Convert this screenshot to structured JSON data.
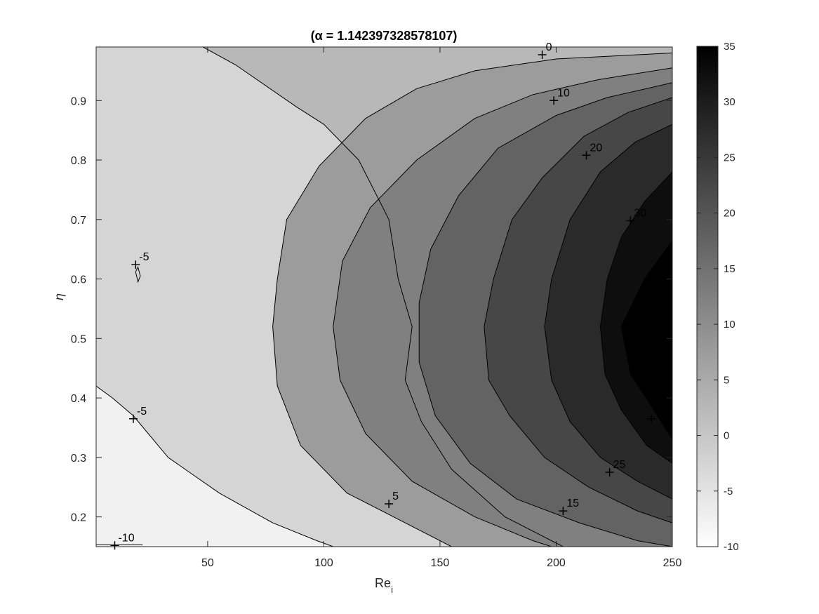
{
  "chart_data": {
    "type": "contour",
    "title": "(α = 1.142397328578107)",
    "xlabel": "Re",
    "xlabel_sub": "i",
    "ylabel": "η",
    "xlim": [
      2,
      250
    ],
    "ylim": [
      0.15,
      0.99
    ],
    "xticks": [
      50,
      100,
      150,
      200,
      250
    ],
    "yticks": [
      0.2,
      0.3,
      0.4,
      0.5,
      0.6,
      0.7,
      0.8,
      0.9
    ],
    "colormap": "gray (reversed)",
    "colorbar": {
      "range": [
        -10,
        35
      ],
      "ticks": [
        -10,
        -5,
        0,
        5,
        10,
        15,
        20,
        25,
        30,
        35
      ]
    },
    "levels": [
      -10,
      -5,
      0,
      5,
      10,
      15,
      20,
      25,
      30,
      35
    ],
    "contour_lines": [
      {
        "level": 0,
        "points": [
          [
            48,
            0.99
          ],
          [
            62,
            0.96
          ],
          [
            88,
            0.89
          ],
          [
            100,
            0.86
          ],
          [
            115,
            0.8
          ],
          [
            128,
            0.7
          ],
          [
            132,
            0.6
          ],
          [
            138,
            0.52
          ],
          [
            135,
            0.43
          ],
          [
            142,
            0.36
          ],
          [
            155,
            0.28
          ],
          [
            178,
            0.2
          ],
          [
            203,
            0.15
          ]
        ]
      },
      {
        "level": 5,
        "points": [
          [
            250,
            0.98
          ],
          [
            200,
            0.97
          ],
          [
            165,
            0.95
          ],
          [
            140,
            0.92
          ],
          [
            118,
            0.87
          ],
          [
            98,
            0.79
          ],
          [
            84,
            0.7
          ],
          [
            80,
            0.6
          ],
          [
            78,
            0.52
          ],
          [
            80,
            0.42
          ],
          [
            90,
            0.32
          ],
          [
            110,
            0.24
          ],
          [
            135,
            0.19
          ],
          [
            155,
            0.15
          ]
        ]
      },
      {
        "level": 10,
        "points": [
          [
            250,
            0.955
          ],
          [
            218,
            0.935
          ],
          [
            190,
            0.91
          ],
          [
            165,
            0.87
          ],
          [
            140,
            0.8
          ],
          [
            120,
            0.72
          ],
          [
            108,
            0.63
          ],
          [
            104,
            0.52
          ],
          [
            107,
            0.43
          ],
          [
            118,
            0.34
          ],
          [
            138,
            0.26
          ],
          [
            165,
            0.2
          ],
          [
            190,
            0.16
          ],
          [
            198,
            0.15
          ]
        ]
      },
      {
        "level": 15,
        "points": [
          [
            250,
            0.93
          ],
          [
            222,
            0.905
          ],
          [
            200,
            0.875
          ],
          [
            175,
            0.82
          ],
          [
            158,
            0.74
          ],
          [
            146,
            0.65
          ],
          [
            141,
            0.56
          ],
          [
            141,
            0.46
          ],
          [
            148,
            0.37
          ],
          [
            163,
            0.29
          ],
          [
            183,
            0.23
          ],
          [
            210,
            0.19
          ],
          [
            235,
            0.16
          ],
          [
            250,
            0.15
          ]
        ]
      },
      {
        "level": 20,
        "points": [
          [
            250,
            0.905
          ],
          [
            231,
            0.88
          ],
          [
            212,
            0.84
          ],
          [
            194,
            0.77
          ],
          [
            181,
            0.7
          ],
          [
            173,
            0.6
          ],
          [
            169,
            0.52
          ],
          [
            171,
            0.43
          ],
          [
            180,
            0.37
          ],
          [
            195,
            0.3
          ],
          [
            214,
            0.25
          ],
          [
            235,
            0.21
          ],
          [
            250,
            0.19
          ]
        ]
      },
      {
        "level": 25,
        "points": [
          [
            250,
            0.86
          ],
          [
            234,
            0.83
          ],
          [
            219,
            0.78
          ],
          [
            206,
            0.7
          ],
          [
            198,
            0.6
          ],
          [
            195,
            0.52
          ],
          [
            198,
            0.43
          ],
          [
            206,
            0.36
          ],
          [
            219,
            0.3
          ],
          [
            235,
            0.26
          ],
          [
            250,
            0.23
          ]
        ]
      },
      {
        "level": 30,
        "points": [
          [
            250,
            0.78
          ],
          [
            238,
            0.73
          ],
          [
            228,
            0.67
          ],
          [
            222,
            0.6
          ],
          [
            219,
            0.52
          ],
          [
            221,
            0.44
          ],
          [
            228,
            0.38
          ],
          [
            239,
            0.32
          ],
          [
            250,
            0.29
          ]
        ]
      },
      {
        "level": 35,
        "points": [
          [
            250,
            0.665
          ],
          [
            238,
            0.6
          ],
          [
            228,
            0.52
          ],
          [
            232,
            0.44
          ],
          [
            242,
            0.38
          ],
          [
            250,
            0.33
          ]
        ]
      },
      {
        "level": -5,
        "points": [
          [
            2,
            0.42
          ],
          [
            9,
            0.4
          ],
          [
            18,
            0.37
          ],
          [
            33,
            0.3
          ],
          [
            55,
            0.24
          ],
          [
            78,
            0.19
          ],
          [
            97,
            0.16
          ],
          [
            104,
            0.15
          ]
        ]
      },
      {
        "level": -10,
        "points": [
          [
            2,
            0.153
          ],
          [
            22,
            0.153
          ]
        ]
      },
      {
        "level": -5,
        "points": [
          [
            19,
            0.612
          ],
          [
            20,
            0.595
          ],
          [
            21,
            0.605
          ],
          [
            20,
            0.62
          ],
          [
            19,
            0.612
          ]
        ]
      }
    ],
    "contour_labels": [
      {
        "text": "0",
        "x": 194,
        "y": 0.977
      },
      {
        "text": "10",
        "x": 199,
        "y": 0.9
      },
      {
        "text": "20",
        "x": 213,
        "y": 0.808
      },
      {
        "text": "30",
        "x": 232,
        "y": 0.698
      },
      {
        "text": "-5",
        "x": 19,
        "y": 0.624
      },
      {
        "text": "-5",
        "x": 18,
        "y": 0.365
      },
      {
        "text": "25",
        "x": 223,
        "y": 0.275
      },
      {
        "text": "5",
        "x": 128,
        "y": 0.222
      },
      {
        "text": "15",
        "x": 203,
        "y": 0.21
      },
      {
        "text": "-10",
        "x": 10,
        "y": 0.152
      }
    ],
    "extra_markers": [
      {
        "x": 241,
        "y": 0.365
      }
    ]
  }
}
